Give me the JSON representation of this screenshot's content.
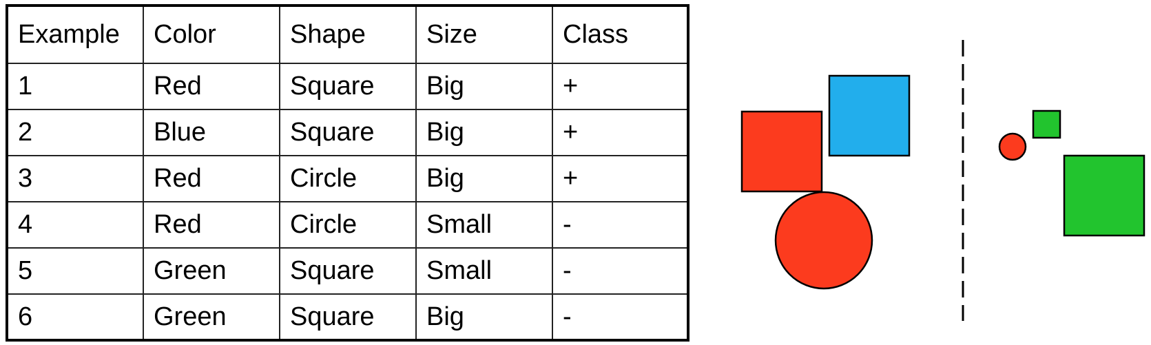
{
  "table": {
    "headers": [
      "Example",
      "Color",
      "Shape",
      "Size",
      "Class"
    ],
    "rows": [
      [
        "1",
        "Red",
        "Square",
        "Big",
        "+"
      ],
      [
        "2",
        "Blue",
        "Square",
        "Big",
        "+"
      ],
      [
        "3",
        "Red",
        "Circle",
        "Big",
        "+"
      ],
      [
        "4",
        "Red",
        "Circle",
        "Small",
        "-"
      ],
      [
        "5",
        "Green",
        "Square",
        "Small",
        "-"
      ],
      [
        "6",
        "Green",
        "Square",
        "Big",
        "-"
      ]
    ]
  },
  "figure": {
    "colors": {
      "red": "#fc3b1e",
      "blue": "#22aeec",
      "green": "#22c42e",
      "outline": "#000000"
    },
    "positive_shapes": [
      {
        "color": "red",
        "shape": "square",
        "size": "big"
      },
      {
        "color": "blue",
        "shape": "square",
        "size": "big"
      },
      {
        "color": "red",
        "shape": "circle",
        "size": "big"
      }
    ],
    "negative_shapes": [
      {
        "color": "red",
        "shape": "circle",
        "size": "small"
      },
      {
        "color": "green",
        "shape": "square",
        "size": "small"
      },
      {
        "color": "green",
        "shape": "square",
        "size": "big"
      }
    ],
    "separator": "dashed vertical line"
  }
}
